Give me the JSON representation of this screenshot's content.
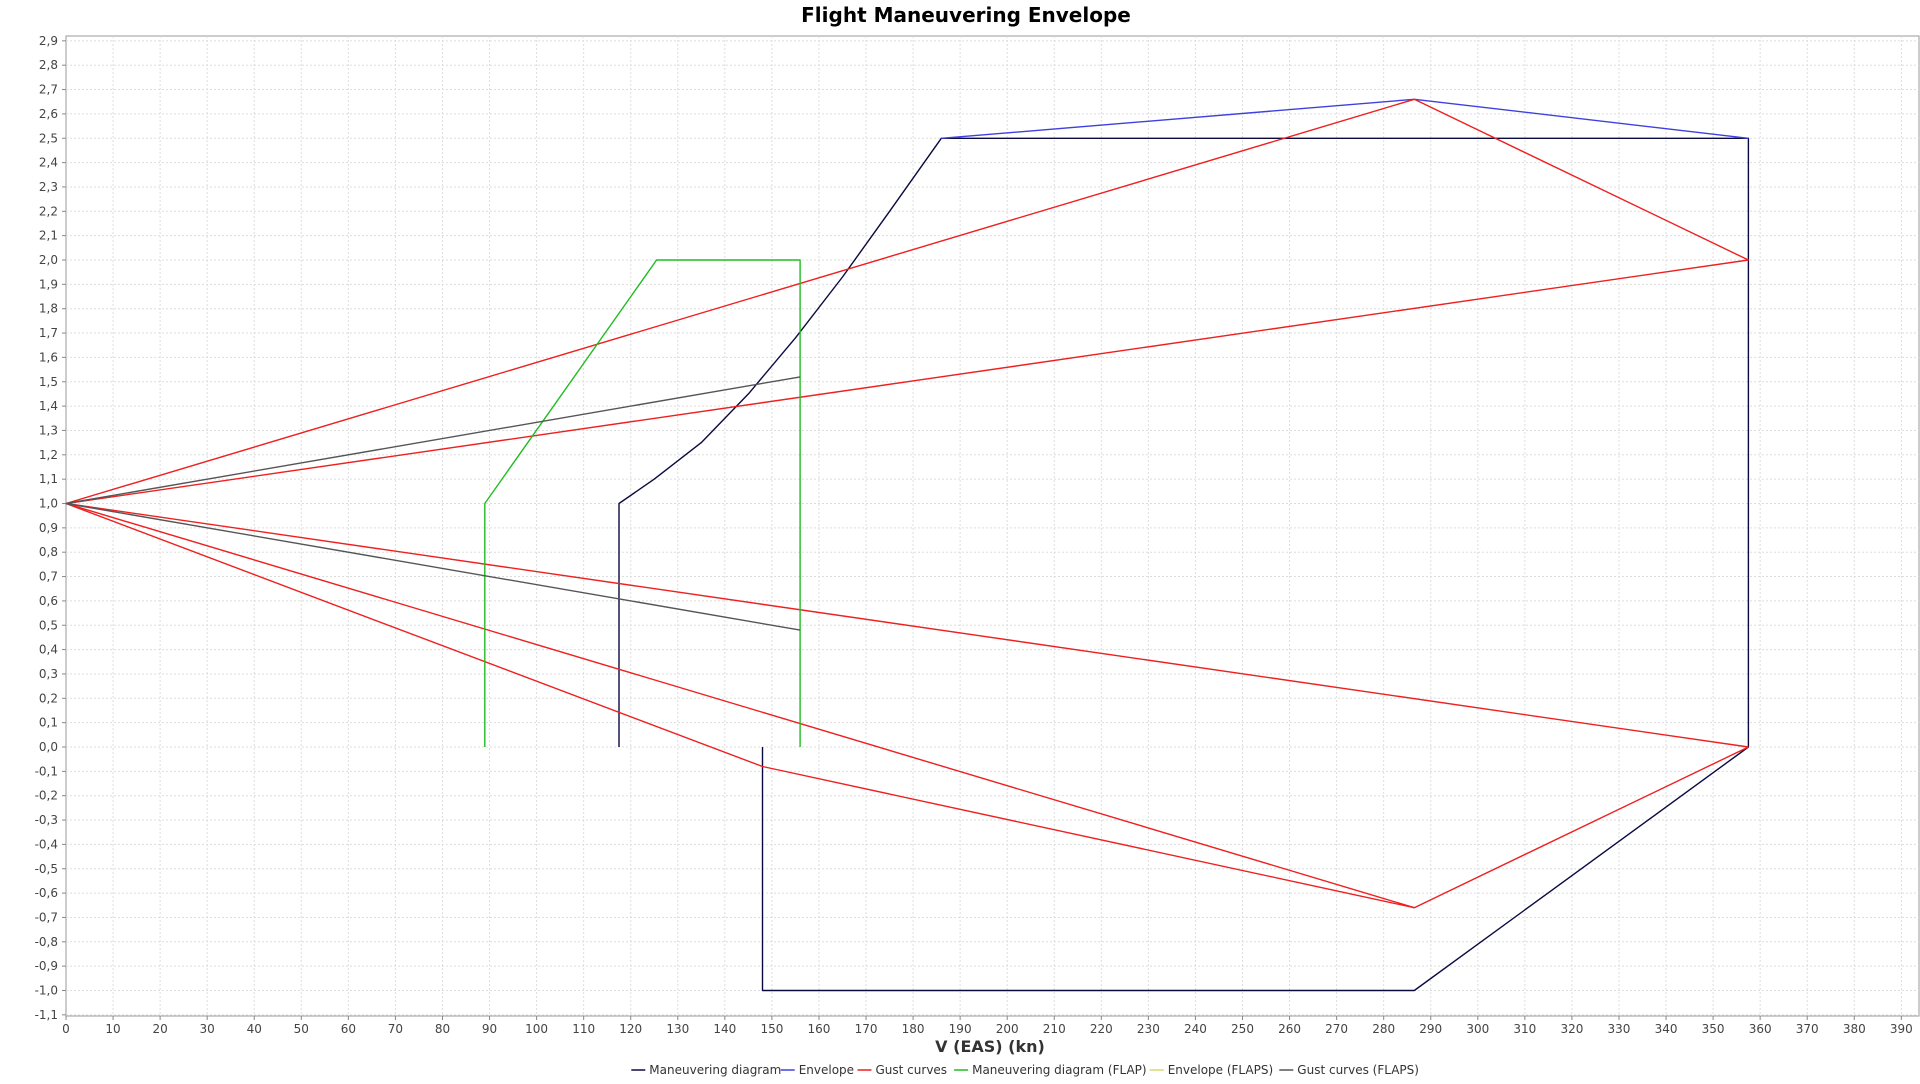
{
  "chart_data": {
    "type": "line",
    "title": "Flight Maneuvering Envelope",
    "xlabel": "V (EAS) (kn)",
    "ylabel": "",
    "xlim": [
      0,
      392
    ],
    "ylim": [
      -1.1,
      2.95
    ],
    "x_ticks": [
      0,
      10,
      20,
      30,
      40,
      50,
      60,
      70,
      80,
      90,
      100,
      110,
      120,
      130,
      140,
      150,
      160,
      170,
      180,
      190,
      200,
      210,
      220,
      230,
      240,
      250,
      260,
      270,
      280,
      290,
      300,
      310,
      320,
      330,
      340,
      350,
      360,
      370,
      380,
      390
    ],
    "y_ticks": [
      "2,9",
      "2,8",
      "2,7",
      "2,6",
      "2,5",
      "2,4",
      "2,3",
      "2,2",
      "2,1",
      "2,0",
      "1,9",
      "1,8",
      "1,7",
      "1,6",
      "1,5",
      "1,4",
      "1,3",
      "1,2",
      "1,1",
      "1,0",
      "0,9",
      "0,8",
      "0,7",
      "0,6",
      "0,5",
      "0,4",
      "0,3",
      "0,2",
      "0,1",
      "0,0",
      "-0,1",
      "-0,2",
      "-0,3",
      "-0,4",
      "-0,5",
      "-0,6",
      "-0,7",
      "-0,8",
      "-0,9",
      "-1,0",
      "-1,1"
    ],
    "y_tick_values": [
      2.9,
      2.8,
      2.7,
      2.6,
      2.5,
      2.4,
      2.3,
      2.2,
      2.1,
      2.0,
      1.9,
      1.8,
      1.7,
      1.6,
      1.5,
      1.4,
      1.3,
      1.2,
      1.1,
      1.0,
      0.9,
      0.8,
      0.7,
      0.6,
      0.5,
      0.4,
      0.3,
      0.2,
      0.1,
      0.0,
      -0.1,
      -0.2,
      -0.3,
      -0.4,
      -0.5,
      -0.6,
      -0.7,
      -0.8,
      -0.9,
      -1.0,
      -1.1
    ],
    "grid": true,
    "legend_position": "bottom",
    "series": [
      {
        "name": "Maneuvering diagram",
        "color": "#0a0a40",
        "segments": [
          [
            [
              117.5,
              0.0
            ],
            [
              117.5,
              1.0
            ],
            [
              125,
              1.1
            ],
            [
              135,
              1.25
            ],
            [
              145,
              1.45
            ],
            [
              155,
              1.68
            ],
            [
              165,
              1.93
            ],
            [
              175,
              2.2
            ],
            [
              186,
              2.5
            ],
            [
              357.5,
              2.5
            ],
            [
              357.5,
              0.0
            ],
            [
              286.5,
              -1.0
            ],
            [
              148,
              -1.0
            ],
            [
              148,
              0.0
            ]
          ]
        ]
      },
      {
        "name": "Envelope",
        "color": "#4040e0",
        "segments": [
          [
            [
              186,
              2.5
            ],
            [
              286.5,
              2.66
            ],
            [
              357.5,
              2.5
            ]
          ]
        ]
      },
      {
        "name": "Gust curves",
        "color": "#ee2020",
        "segments": [
          [
            [
              0,
              1.0
            ],
            [
              286.5,
              2.66
            ],
            [
              357.5,
              2.0
            ]
          ],
          [
            [
              0,
              1.0
            ],
            [
              357.5,
              2.0
            ]
          ],
          [
            [
              0,
              1.0
            ],
            [
              357.5,
              0.0
            ]
          ],
          [
            [
              0,
              1.0
            ],
            [
              286.5,
              -0.66
            ],
            [
              357.5,
              0.0
            ]
          ],
          [
            [
              0,
              1.0
            ],
            [
              148,
              -0.08
            ],
            [
              286.5,
              -0.66
            ]
          ]
        ]
      },
      {
        "name": "Maneuvering diagram (FLAP)",
        "color": "#22bb22",
        "segments": [
          [
            [
              89,
              0.0
            ],
            [
              89,
              1.0
            ],
            [
              125.5,
              2.0
            ],
            [
              156,
              2.0
            ],
            [
              156,
              0.0
            ]
          ]
        ]
      },
      {
        "name": "Envelope (FLAPS)",
        "color": "#d8d870",
        "segments": []
      },
      {
        "name": "Gust curves (FLAPS)",
        "color": "#555555",
        "segments": [
          [
            [
              0,
              1.0
            ],
            [
              156,
              1.52
            ]
          ],
          [
            [
              0,
              1.0
            ],
            [
              156,
              0.48
            ]
          ]
        ]
      }
    ]
  }
}
